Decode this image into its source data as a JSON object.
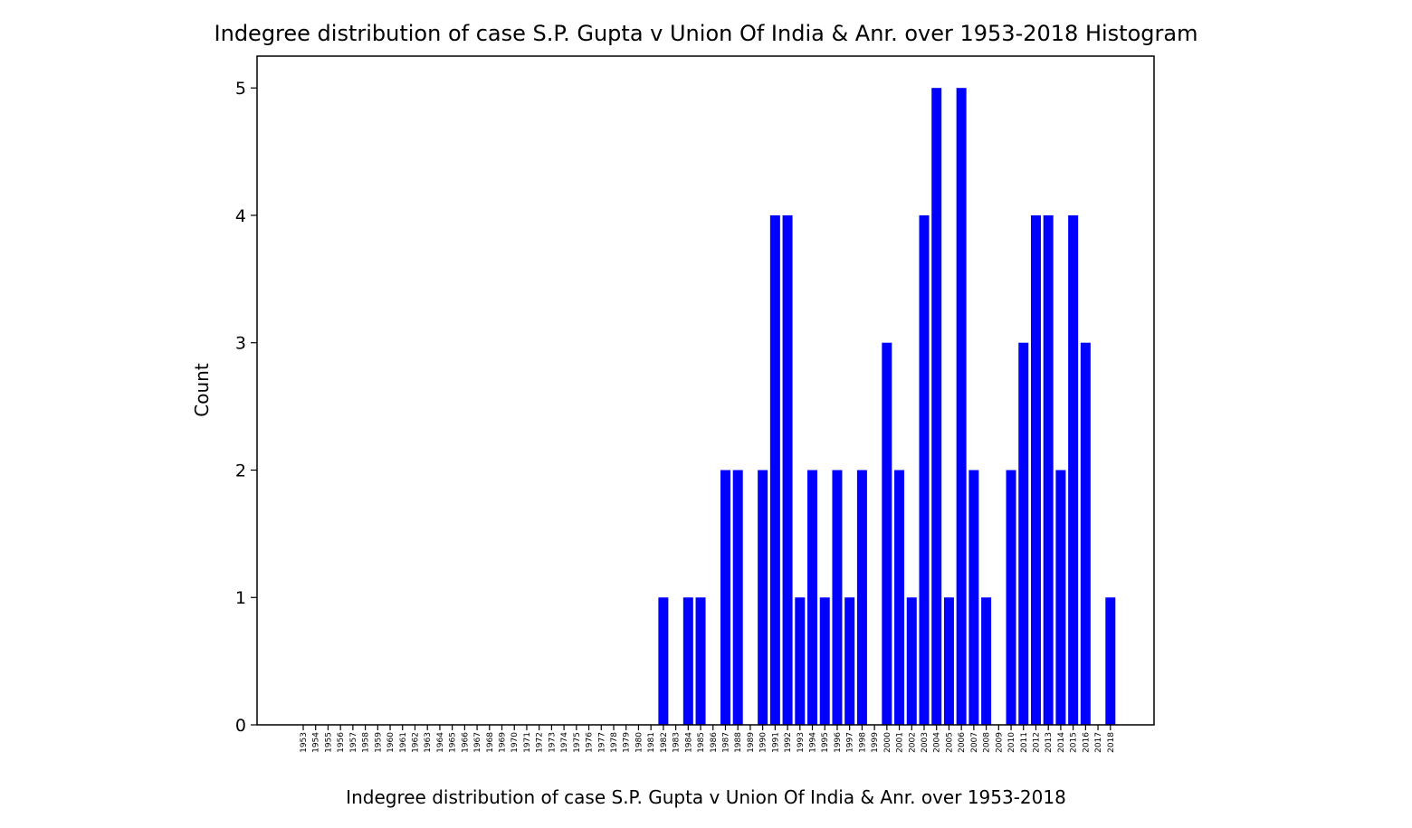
{
  "chart_data": {
    "type": "bar",
    "title": "Indegree distribution of case S.P. Gupta v Union Of India & Anr. over 1953-2018 Histogram",
    "xlabel": "Indegree distribution of case S.P. Gupta v Union Of India & Anr. over 1953-2018",
    "ylabel": "Count",
    "categories": [
      "1953",
      "1954",
      "1955",
      "1956",
      "1957",
      "1958",
      "1959",
      "1960",
      "1961",
      "1962",
      "1963",
      "1964",
      "1965",
      "1966",
      "1967",
      "1968",
      "1969",
      "1970",
      "1971",
      "1972",
      "1973",
      "1974",
      "1975",
      "1976",
      "1977",
      "1978",
      "1979",
      "1980",
      "1981",
      "1982",
      "1983",
      "1984",
      "1985",
      "1986",
      "1987",
      "1988",
      "1989",
      "1990",
      "1991",
      "1992",
      "1993",
      "1994",
      "1995",
      "1996",
      "1997",
      "1998",
      "1999",
      "2000",
      "2001",
      "2002",
      "2003",
      "2004",
      "2005",
      "2006",
      "2007",
      "2008",
      "2009",
      "2010",
      "2011",
      "2012",
      "2013",
      "2014",
      "2015",
      "2016",
      "2017",
      "2018"
    ],
    "values": [
      0,
      0,
      0,
      0,
      0,
      0,
      0,
      0,
      0,
      0,
      0,
      0,
      0,
      0,
      0,
      0,
      0,
      0,
      0,
      0,
      0,
      0,
      0,
      0,
      0,
      0,
      0,
      0,
      0,
      1,
      0,
      1,
      1,
      0,
      2,
      2,
      0,
      2,
      4,
      4,
      1,
      2,
      1,
      2,
      1,
      2,
      0,
      3,
      2,
      1,
      4,
      5,
      1,
      5,
      2,
      1,
      0,
      2,
      3,
      4,
      4,
      2,
      4,
      3,
      0,
      1
    ],
    "ylim": [
      0,
      5.25
    ],
    "yticks": [
      0,
      1,
      2,
      3,
      4,
      5
    ],
    "bar_color": "#0000ff",
    "grid": false,
    "legend": "none"
  }
}
